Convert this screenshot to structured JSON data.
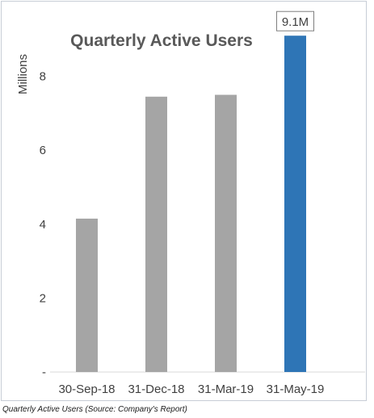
{
  "chart_data": {
    "type": "bar",
    "title": "Quarterly Active Users",
    "ylabel": "Millions",
    "xlabel": "",
    "categories": [
      "30-Sep-18",
      "31-Dec-18",
      "31-Mar-19",
      "31-May-19"
    ],
    "values": [
      4.15,
      7.45,
      7.5,
      9.1
    ],
    "colors": [
      "#a5a5a5",
      "#a5a5a5",
      "#a5a5a5",
      "#2e75b6"
    ],
    "ylim": [
      0,
      9.5
    ],
    "yticks": [
      {
        "value": 0,
        "label": "-"
      },
      {
        "value": 2,
        "label": "2"
      },
      {
        "value": 4,
        "label": "4"
      },
      {
        "value": 6,
        "label": "6"
      },
      {
        "value": 8,
        "label": "8"
      }
    ],
    "annotations": [
      {
        "category_index": 3,
        "text": "9.1M"
      }
    ],
    "grid": false,
    "legend": "none"
  },
  "caption": "Quarterly Active Users (Source: Company's Report)"
}
